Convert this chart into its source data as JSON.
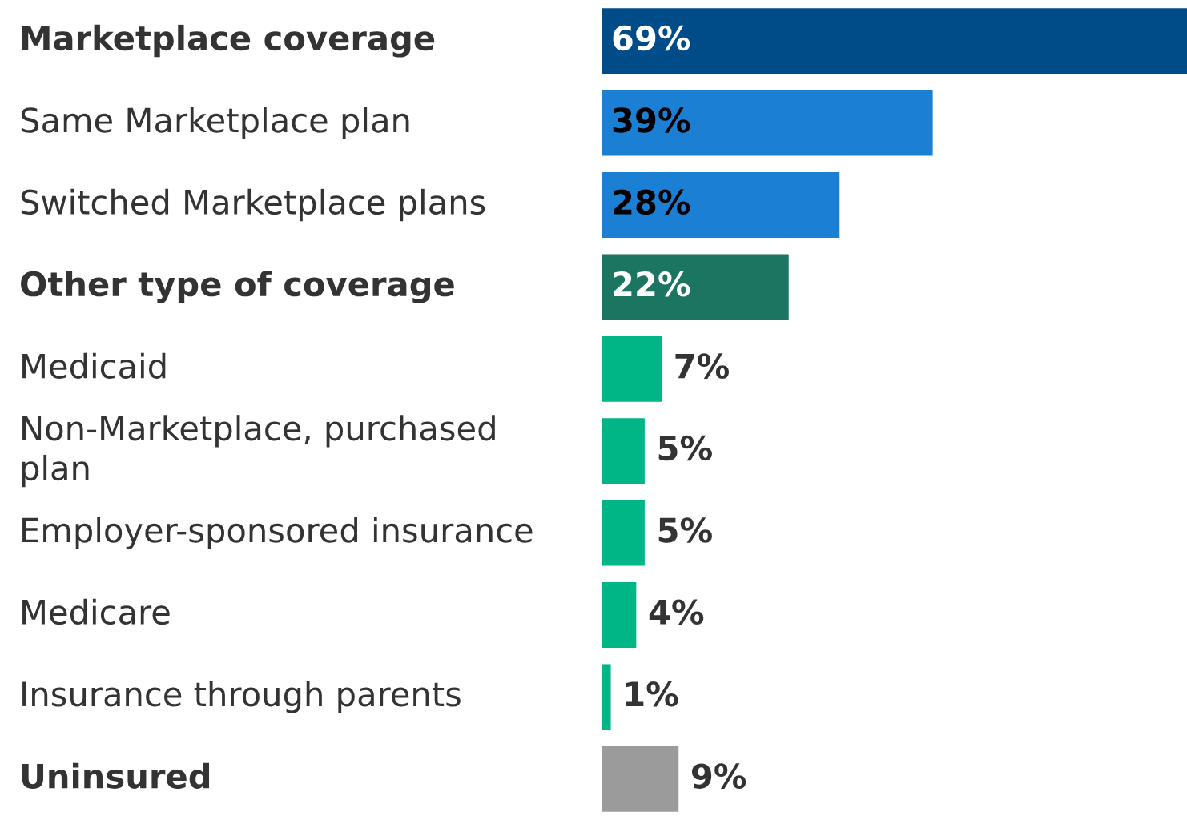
{
  "chart_data": {
    "type": "bar",
    "orientation": "horizontal",
    "categories": [
      "Marketplace coverage",
      "Same Marketplace plan",
      "Switched Marketplace plans",
      "Other type of coverage",
      "Medicaid",
      "Non-Marketplace, purchased plan",
      "Employer-sponsored insurance",
      "Medicare",
      "Insurance through parents",
      "Uninsured"
    ],
    "values": [
      69,
      39,
      28,
      22,
      7,
      5,
      5,
      4,
      1,
      9
    ],
    "colors": [
      "#004c88",
      "#1b7fd4",
      "#1b7fd4",
      "#1b7561",
      "#00b686",
      "#00b686",
      "#00b686",
      "#00b686",
      "#00b686",
      "#9b9b9b"
    ],
    "value_labels": [
      "69%",
      "39%",
      "28%",
      "22%",
      "7%",
      "5%",
      "5%",
      "4%",
      "1%",
      "9%"
    ]
  }
}
